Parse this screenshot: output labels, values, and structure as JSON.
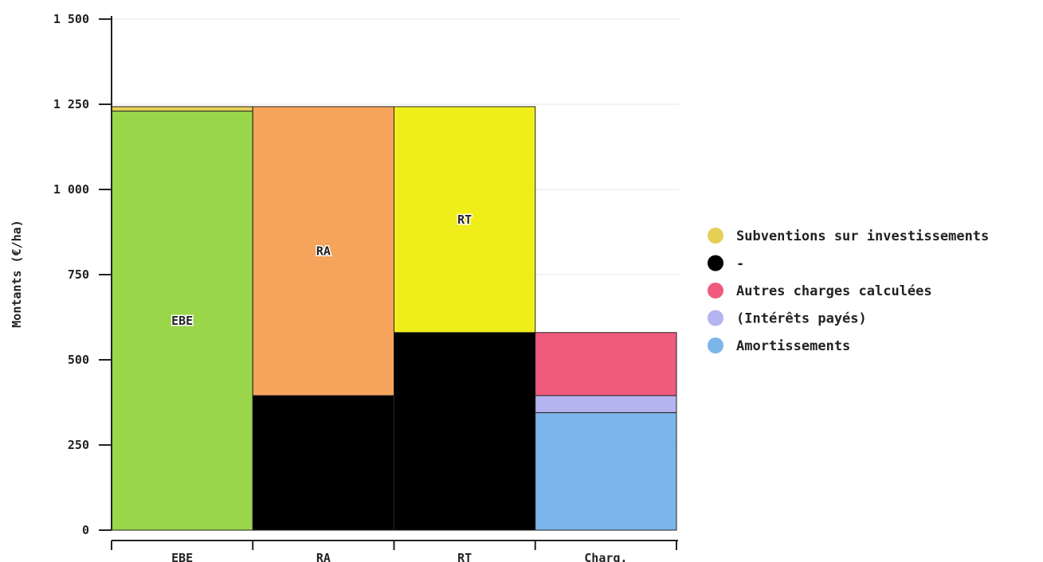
{
  "chart_data": {
    "type": "bar",
    "stacked": true,
    "ylabel": "Montants (€/ha)",
    "xlabel": "",
    "ylim": [
      0,
      1500
    ],
    "yticks": [
      0,
      250,
      500,
      750,
      1000,
      1250,
      1500
    ],
    "ytick_labels": [
      "0",
      "250",
      "500",
      "750",
      "1 000",
      "1 250",
      "1 500"
    ],
    "grid": true,
    "legend_position": "right",
    "categories": [
      "EBE",
      "RA",
      "RT",
      "Charg."
    ],
    "segments": [
      [
        {
          "series": "EBE",
          "from": 0,
          "to": 1230,
          "color": "#9ad64a",
          "label": "EBE"
        },
        {
          "series": "Subventions sur investissements",
          "from": 1230,
          "to": 1243,
          "color": "#e5cf57",
          "label": ""
        }
      ],
      [
        {
          "series": "-",
          "from": 0,
          "to": 395,
          "color": "#000000",
          "label": ""
        },
        {
          "series": "RA",
          "from": 395,
          "to": 1243,
          "color": "#f6a35c",
          "label": "RA"
        }
      ],
      [
        {
          "series": "-",
          "from": 0,
          "to": 580,
          "color": "#000000",
          "label": ""
        },
        {
          "series": "RT",
          "from": 580,
          "to": 1243,
          "color": "#f0ee1a",
          "label": "RT"
        }
      ],
      [
        {
          "series": "Amortissements",
          "from": 0,
          "to": 345,
          "color": "#7cb5ea",
          "label": ""
        },
        {
          "series": "(Intérêts payés)",
          "from": 345,
          "to": 395,
          "color": "#b4b4f0",
          "label": ""
        },
        {
          "series": "Autres charges calculées",
          "from": 395,
          "to": 580,
          "color": "#f05b7d",
          "label": ""
        }
      ]
    ],
    "legend": [
      {
        "name": "Subventions sur investissements",
        "color": "#e5cf57"
      },
      {
        "name": "-",
        "color": "#000000"
      },
      {
        "name": "Autres charges calculées",
        "color": "#f05b7d"
      },
      {
        "name": "(Intérêts payés)",
        "color": "#b4b4f0"
      },
      {
        "name": "Amortissements",
        "color": "#7cb5ea"
      }
    ]
  }
}
